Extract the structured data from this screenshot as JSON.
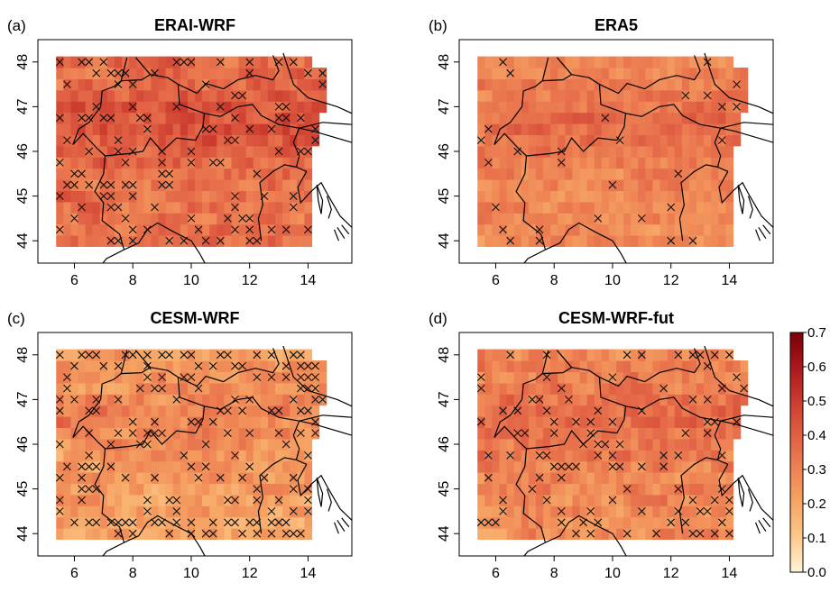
{
  "panels": [
    {
      "letter": "(a)",
      "title": "ERAI-WRF"
    },
    {
      "letter": "(b)",
      "title": "ERA5"
    },
    {
      "letter": "(c)",
      "title": "CESM-WRF"
    },
    {
      "letter": "(d)",
      "title": "CESM-WRF-fut"
    }
  ],
  "axes": {
    "x_ticks": [
      "6",
      "8",
      "10",
      "12",
      "14"
    ],
    "y_ticks": [
      "44",
      "45",
      "46",
      "47",
      "48"
    ],
    "lon_range": [
      4.75,
      15.5
    ],
    "lat_range": [
      43.5,
      48.5
    ]
  },
  "colorbar": {
    "ticks": [
      "0.0",
      "0.1",
      "0.2",
      "0.3",
      "0.4",
      "0.5",
      "0.6",
      "0.7"
    ],
    "range": [
      0,
      0.7
    ],
    "colors": [
      "#FFF5D9",
      "#FDC98C",
      "#F6A765",
      "#EE8254",
      "#E05F43",
      "#CC3B2E",
      "#A9171B",
      "#7A0008"
    ]
  },
  "map_colors": {
    "very_low": "#FEE1B2",
    "low": "#F7B47F",
    "mid": "#F19C6B",
    "mid_high": "#ED7D4E",
    "high": "#E5603A",
    "very_high": "#C8281E",
    "max": "#A30E0E"
  },
  "description": "Gridded values over the Alps with national borders and coastlines; X markers denote non-significant grid cells."
}
